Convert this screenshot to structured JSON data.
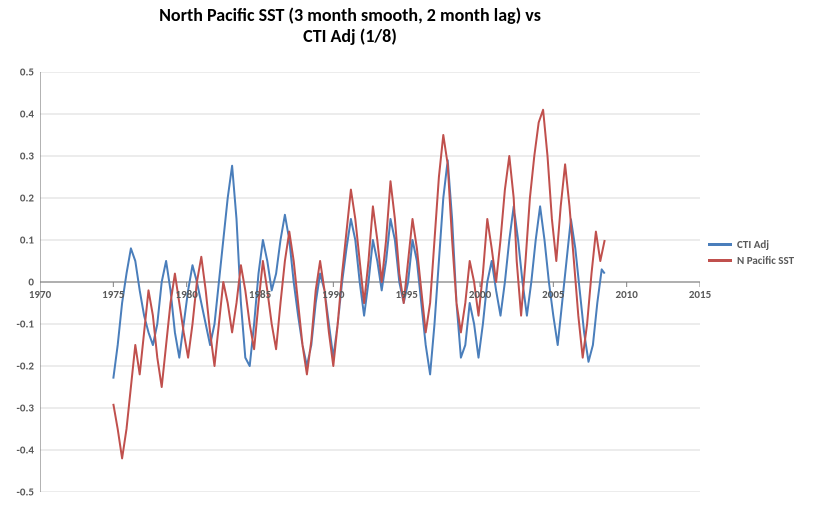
{
  "chart": {
    "type": "line",
    "title_line1": "North Pacific SST (3 month smooth, 2 month lag) vs",
    "title_line2": "CTI Adj (1/8)",
    "title_fontsize": 18,
    "title_fontweight": "700",
    "background": "#ffffff",
    "grid_color": "#d9d9d9",
    "axis_color": "#808080",
    "x_axis": {
      "min": 1970,
      "max": 2015,
      "ticks": [
        1970,
        1975,
        1980,
        1985,
        1990,
        1995,
        2000,
        2005,
        2010,
        2015
      ],
      "label_fontsize": 11
    },
    "y_axis": {
      "min": -0.5,
      "max": 0.5,
      "ticks": [
        -0.5,
        -0.4,
        -0.3,
        -0.2,
        -0.1,
        0,
        0.1,
        0.2,
        0.3,
        0.4,
        0.5
      ],
      "label_fontsize": 11
    },
    "legend": {
      "items": [
        {
          "label": "CTI Adj",
          "color": "#4a7ebb"
        },
        {
          "label": "N Pacific SST",
          "color": "#c0504d"
        }
      ]
    },
    "series": [
      {
        "name": "CTI Adj",
        "color": "#4a7ebb",
        "line_width": 2,
        "points": [
          [
            1975.0,
            -0.23
          ],
          [
            1975.3,
            -0.15
          ],
          [
            1975.6,
            -0.05
          ],
          [
            1975.9,
            0.02
          ],
          [
            1976.2,
            0.08
          ],
          [
            1976.5,
            0.05
          ],
          [
            1976.8,
            -0.02
          ],
          [
            1977.1,
            -0.08
          ],
          [
            1977.4,
            -0.12
          ],
          [
            1977.7,
            -0.15
          ],
          [
            1978.0,
            -0.1
          ],
          [
            1978.3,
            0.0
          ],
          [
            1978.6,
            0.05
          ],
          [
            1978.9,
            -0.02
          ],
          [
            1979.2,
            -0.12
          ],
          [
            1979.5,
            -0.18
          ],
          [
            1979.8,
            -0.1
          ],
          [
            1980.1,
            -0.02
          ],
          [
            1980.4,
            0.04
          ],
          [
            1980.7,
            0.0
          ],
          [
            1981.0,
            -0.05
          ],
          [
            1981.3,
            -0.1
          ],
          [
            1981.6,
            -0.15
          ],
          [
            1981.9,
            -0.1
          ],
          [
            1982.2,
            0.0
          ],
          [
            1982.5,
            0.1
          ],
          [
            1982.8,
            0.2
          ],
          [
            1983.1,
            0.277
          ],
          [
            1983.4,
            0.15
          ],
          [
            1983.7,
            -0.05
          ],
          [
            1984.0,
            -0.18
          ],
          [
            1984.3,
            -0.2
          ],
          [
            1984.6,
            -0.1
          ],
          [
            1984.9,
            0.02
          ],
          [
            1985.2,
            0.1
          ],
          [
            1985.5,
            0.05
          ],
          [
            1985.8,
            -0.02
          ],
          [
            1986.1,
            0.02
          ],
          [
            1986.4,
            0.1
          ],
          [
            1986.7,
            0.16
          ],
          [
            1987.0,
            0.1
          ],
          [
            1987.3,
            0.0
          ],
          [
            1987.6,
            -0.08
          ],
          [
            1987.9,
            -0.15
          ],
          [
            1988.2,
            -0.2
          ],
          [
            1988.5,
            -0.15
          ],
          [
            1988.8,
            -0.05
          ],
          [
            1989.1,
            0.02
          ],
          [
            1989.4,
            -0.02
          ],
          [
            1989.7,
            -0.1
          ],
          [
            1990.0,
            -0.18
          ],
          [
            1990.3,
            -0.1
          ],
          [
            1990.6,
            0.0
          ],
          [
            1990.9,
            0.08
          ],
          [
            1991.2,
            0.15
          ],
          [
            1991.5,
            0.1
          ],
          [
            1991.8,
            0.0
          ],
          [
            1992.1,
            -0.08
          ],
          [
            1992.4,
            0.0
          ],
          [
            1992.7,
            0.1
          ],
          [
            1993.0,
            0.05
          ],
          [
            1993.3,
            -0.02
          ],
          [
            1993.6,
            0.05
          ],
          [
            1993.9,
            0.15
          ],
          [
            1994.2,
            0.1
          ],
          [
            1994.5,
            0.0
          ],
          [
            1994.8,
            -0.05
          ],
          [
            1995.1,
            0.0
          ],
          [
            1995.4,
            0.1
          ],
          [
            1995.7,
            0.05
          ],
          [
            1996.0,
            -0.05
          ],
          [
            1996.3,
            -0.15
          ],
          [
            1996.6,
            -0.22
          ],
          [
            1996.9,
            -0.1
          ],
          [
            1997.2,
            0.05
          ],
          [
            1997.5,
            0.2
          ],
          [
            1997.8,
            0.29
          ],
          [
            1998.1,
            0.15
          ],
          [
            1998.4,
            -0.05
          ],
          [
            1998.7,
            -0.18
          ],
          [
            1999.0,
            -0.15
          ],
          [
            1999.3,
            -0.05
          ],
          [
            1999.6,
            -0.1
          ],
          [
            1999.9,
            -0.18
          ],
          [
            2000.2,
            -0.1
          ],
          [
            2000.5,
            0.0
          ],
          [
            2000.8,
            0.05
          ],
          [
            2001.1,
            -0.02
          ],
          [
            2001.4,
            -0.08
          ],
          [
            2001.7,
            0.0
          ],
          [
            2002.0,
            0.1
          ],
          [
            2002.3,
            0.18
          ],
          [
            2002.6,
            0.1
          ],
          [
            2002.9,
            0.0
          ],
          [
            2003.2,
            -0.08
          ],
          [
            2003.5,
            0.0
          ],
          [
            2003.8,
            0.1
          ],
          [
            2004.1,
            0.18
          ],
          [
            2004.4,
            0.1
          ],
          [
            2004.7,
            0.0
          ],
          [
            2005.0,
            -0.08
          ],
          [
            2005.3,
            -0.15
          ],
          [
            2005.6,
            -0.05
          ],
          [
            2005.9,
            0.05
          ],
          [
            2006.2,
            0.15
          ],
          [
            2006.5,
            0.08
          ],
          [
            2006.8,
            -0.02
          ],
          [
            2007.1,
            -0.12
          ],
          [
            2007.4,
            -0.19
          ],
          [
            2007.7,
            -0.15
          ],
          [
            2008.0,
            -0.05
          ],
          [
            2008.3,
            0.03
          ],
          [
            2008.5,
            0.02
          ]
        ]
      },
      {
        "name": "N Pacific SST",
        "color": "#c0504d",
        "line_width": 2,
        "points": [
          [
            1975.0,
            -0.29
          ],
          [
            1975.3,
            -0.35
          ],
          [
            1975.6,
            -0.42
          ],
          [
            1975.9,
            -0.35
          ],
          [
            1976.2,
            -0.25
          ],
          [
            1976.5,
            -0.15
          ],
          [
            1976.8,
            -0.22
          ],
          [
            1977.1,
            -0.12
          ],
          [
            1977.4,
            -0.02
          ],
          [
            1977.7,
            -0.08
          ],
          [
            1978.0,
            -0.18
          ],
          [
            1978.3,
            -0.25
          ],
          [
            1978.6,
            -0.15
          ],
          [
            1978.9,
            -0.05
          ],
          [
            1979.2,
            0.02
          ],
          [
            1979.5,
            -0.05
          ],
          [
            1979.8,
            -0.12
          ],
          [
            1980.1,
            -0.18
          ],
          [
            1980.4,
            -0.1
          ],
          [
            1980.7,
            0.0
          ],
          [
            1981.0,
            0.06
          ],
          [
            1981.3,
            -0.02
          ],
          [
            1981.6,
            -0.12
          ],
          [
            1981.9,
            -0.2
          ],
          [
            1982.2,
            -0.1
          ],
          [
            1982.5,
            0.0
          ],
          [
            1982.8,
            -0.05
          ],
          [
            1983.1,
            -0.12
          ],
          [
            1983.4,
            -0.05
          ],
          [
            1983.7,
            0.04
          ],
          [
            1984.0,
            -0.02
          ],
          [
            1984.3,
            -0.1
          ],
          [
            1984.6,
            -0.16
          ],
          [
            1984.9,
            -0.05
          ],
          [
            1985.2,
            0.05
          ],
          [
            1985.5,
            -0.02
          ],
          [
            1985.8,
            -0.1
          ],
          [
            1986.1,
            -0.16
          ],
          [
            1986.4,
            -0.05
          ],
          [
            1986.7,
            0.05
          ],
          [
            1987.0,
            0.12
          ],
          [
            1987.3,
            0.05
          ],
          [
            1987.6,
            -0.05
          ],
          [
            1987.9,
            -0.15
          ],
          [
            1988.2,
            -0.22
          ],
          [
            1988.5,
            -0.14
          ],
          [
            1988.8,
            -0.02
          ],
          [
            1989.1,
            0.05
          ],
          [
            1989.4,
            -0.02
          ],
          [
            1989.7,
            -0.12
          ],
          [
            1990.0,
            -0.2
          ],
          [
            1990.3,
            -0.1
          ],
          [
            1990.6,
            0.02
          ],
          [
            1990.9,
            0.12
          ],
          [
            1991.2,
            0.22
          ],
          [
            1991.5,
            0.15
          ],
          [
            1991.8,
            0.05
          ],
          [
            1992.1,
            -0.05
          ],
          [
            1992.4,
            0.05
          ],
          [
            1992.7,
            0.18
          ],
          [
            1993.0,
            0.1
          ],
          [
            1993.3,
            0.0
          ],
          [
            1993.6,
            0.1
          ],
          [
            1993.9,
            0.24
          ],
          [
            1994.2,
            0.15
          ],
          [
            1994.5,
            0.02
          ],
          [
            1994.8,
            -0.05
          ],
          [
            1995.1,
            0.05
          ],
          [
            1995.4,
            0.15
          ],
          [
            1995.7,
            0.08
          ],
          [
            1996.0,
            -0.02
          ],
          [
            1996.3,
            -0.12
          ],
          [
            1996.6,
            -0.05
          ],
          [
            1996.9,
            0.1
          ],
          [
            1997.2,
            0.25
          ],
          [
            1997.5,
            0.35
          ],
          [
            1997.8,
            0.28
          ],
          [
            1998.1,
            0.1
          ],
          [
            1998.4,
            -0.05
          ],
          [
            1998.7,
            -0.12
          ],
          [
            1999.0,
            -0.05
          ],
          [
            1999.3,
            0.05
          ],
          [
            1999.6,
            0.0
          ],
          [
            1999.9,
            -0.08
          ],
          [
            2000.2,
            0.02
          ],
          [
            2000.5,
            0.15
          ],
          [
            2000.8,
            0.08
          ],
          [
            2001.1,
            0.0
          ],
          [
            2001.4,
            0.1
          ],
          [
            2001.7,
            0.22
          ],
          [
            2002.0,
            0.3
          ],
          [
            2002.3,
            0.2
          ],
          [
            2002.5,
            0.05
          ],
          [
            2002.8,
            -0.08
          ],
          [
            2003.1,
            0.05
          ],
          [
            2003.4,
            0.2
          ],
          [
            2003.7,
            0.3
          ],
          [
            2004.0,
            0.38
          ],
          [
            2004.3,
            0.41
          ],
          [
            2004.6,
            0.3
          ],
          [
            2004.9,
            0.15
          ],
          [
            2005.2,
            0.05
          ],
          [
            2005.5,
            0.18
          ],
          [
            2005.8,
            0.28
          ],
          [
            2006.1,
            0.18
          ],
          [
            2006.4,
            0.05
          ],
          [
            2006.7,
            -0.08
          ],
          [
            2007.0,
            -0.18
          ],
          [
            2007.3,
            -0.1
          ],
          [
            2007.6,
            0.02
          ],
          [
            2007.9,
            0.12
          ],
          [
            2008.2,
            0.05
          ],
          [
            2008.5,
            0.1
          ]
        ]
      }
    ]
  }
}
